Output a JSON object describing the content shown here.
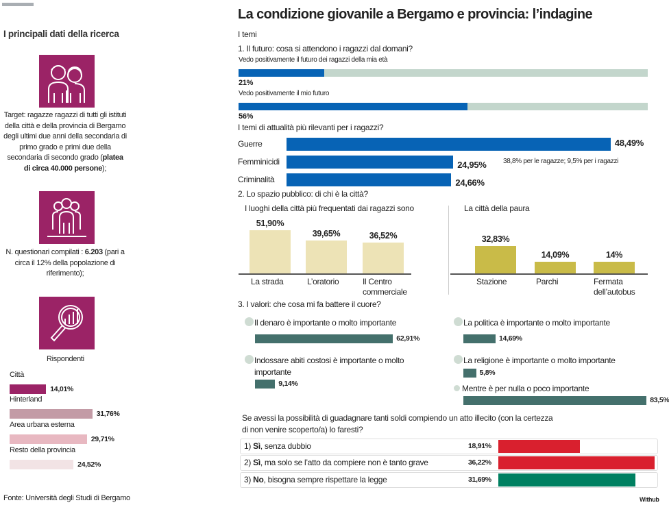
{
  "left": {
    "heading": "I principali dati della ricerca",
    "target_text": "Target: ragazze ragazzi di tutti gli istituti della città e della provincia di Bergamo degli ultimi due anni della secondaria di primo grado e primi due della secondaria di secondo grado (",
    "target_bold": "platea di circa 40.000 persone",
    "target_end": ");",
    "questionari_text": "N. questionari compilati : ",
    "questionari_bold": "6.203",
    "questionari_end": " (pari a circa il 12% della popolazione di riferimento);",
    "rispondenti": "Rispondenti",
    "source": "Fonte: Università degli Studi di Bergamo",
    "icons": [
      "young-people-icon",
      "group-icon",
      "magnifier-chart-icon"
    ]
  },
  "header": {
    "title": "La condizione giovanile a Bergamo e provincia: l’indagine",
    "subtitle": "I temi"
  },
  "sections": {
    "s1": "1. Il futuro: cosa si attendono i ragazzi dal domani?",
    "topics_q": "I temi di attualità più rilevanti per i ragazzi?",
    "femminicidi_note": "38,8% per le ragazze; 9,5% per i ragazzi",
    "s2": "2. Lo spazio pubblico: di chi è la città?",
    "s3": "3. I valori: che cosa mi fa battere il cuore?",
    "illecito_q": "Se avessi la possibilità di guadagnare tanti soldi compiendo un atto illecito (con la certezza di non venire scoperto/a) lo faresti?",
    "credit": "Withub"
  },
  "chart_data": [
    {
      "type": "bar",
      "orientation": "horizontal",
      "title": "Rispondenti",
      "categories": [
        "Città",
        "Hinterland",
        "Area urbana esterna",
        "Resto della provincia"
      ],
      "values": [
        14.01,
        31.76,
        29.71,
        24.52
      ],
      "labels": [
        "14,01%",
        "31,76%",
        "29,71%",
        "24,52%"
      ],
      "colors": [
        "#9b2366",
        "#c39ba6",
        "#e8b8c1",
        "#f2e3e5"
      ]
    },
    {
      "type": "bar",
      "orientation": "horizontal",
      "stacked_track": true,
      "categories": [
        "Vedo positivamente il futuro dei ragazzi della mia età",
        "Vedo positivamente il mio futuro"
      ],
      "values": [
        21,
        56
      ],
      "labels": [
        "21%",
        "56%"
      ],
      "xlim": [
        0,
        100
      ],
      "colors": [
        "#0763b5",
        "#c3d6cc"
      ]
    },
    {
      "type": "bar",
      "orientation": "horizontal",
      "title": "I temi di attualità più rilevanti per i ragazzi?",
      "categories": [
        "Guerre",
        "Femminicidi",
        "Criminalità"
      ],
      "values": [
        48.49,
        24.95,
        24.66
      ],
      "labels": [
        "48,49%",
        "24,95%",
        "24,66%"
      ],
      "color": "#0763b5"
    },
    {
      "type": "bar",
      "title": "I luoghi della città più frequentati dai ragazzi sono",
      "categories": [
        "La strada",
        "L’oratorio",
        "Il Centro commerciale"
      ],
      "values": [
        51.9,
        39.65,
        36.52
      ],
      "labels": [
        "51,90%",
        "39,65%",
        "36,52%"
      ],
      "color": "#ede3b6"
    },
    {
      "type": "bar",
      "title": "La città della paura",
      "categories": [
        "Stazione",
        "Parchi",
        "Fermata dell’autobus"
      ],
      "values": [
        32.83,
        14.09,
        14
      ],
      "labels": [
        "32,83%",
        "14,09%",
        "14%"
      ],
      "color": "#c9bb48"
    },
    {
      "type": "bar",
      "orientation": "horizontal",
      "title": "3. I valori: che cosa mi fa battere il cuore?",
      "categories": [
        "Il denaro è importante o molto importante",
        "Indossare abiti costosi è importante o molto importante",
        "La politica è importante o molto importante",
        "La religione è importante o molto importante",
        "Mentre è per nulla o poco importante"
      ],
      "values": [
        62.91,
        9.14,
        14.69,
        5.8,
        83.5
      ],
      "labels": [
        "62,91%",
        "9,14%",
        "14,69%",
        "5,8%",
        "83,5%"
      ],
      "color": "#44706c"
    },
    {
      "type": "bar",
      "orientation": "horizontal",
      "categories": [
        "1) Sì, senza dubbio",
        "2) Sì, ma solo se l’atto da compiere non è tanto grave",
        "3) No, bisogna sempre rispettare la legge"
      ],
      "prefix": [
        "1) ",
        "2) ",
        "3) "
      ],
      "bold": [
        "Sì",
        "Sì",
        "No"
      ],
      "rest": [
        ", senza dubbio",
        ", ma solo se l’atto da compiere non è tanto grave",
        ", bisogna sempre rispettare la legge"
      ],
      "values": [
        18.91,
        36.22,
        31.69
      ],
      "labels": [
        "18,91%",
        "36,22%",
        "31,69%"
      ],
      "colors": [
        "#d9202e",
        "#d9202e",
        "#008061"
      ]
    }
  ]
}
